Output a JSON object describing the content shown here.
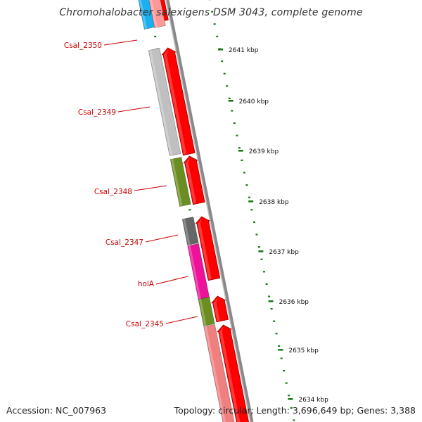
{
  "title": "Chromohalobacter salexigens DSM 3043, complete genome",
  "footer": {
    "accession": "Accession: NC_007963",
    "summary": "Topology: circular; Length: 3,696,649 bp; Genes: 3,388"
  },
  "colors": {
    "forward_strand": "#ff0000",
    "backbone": "#888888",
    "tick": "#1a7a1a",
    "label": "#cc0000"
  },
  "genes": [
    {
      "name": "",
      "color": "#1ab0f0"
    },
    {
      "name": "Csal_2350",
      "color": "#ff9999"
    },
    {
      "name": "Csal_2349",
      "color": "#c0c0c0"
    },
    {
      "name": "Csal_2348",
      "color": "#6b8e23"
    },
    {
      "name": "Csal_2347",
      "color": "#666666"
    },
    {
      "name": "holA",
      "color": "#ee1199"
    },
    {
      "name": "Csal_2345",
      "color": "#6b8e23"
    },
    {
      "name": "",
      "color": "#f08080"
    }
  ],
  "scale_labels": [
    "2641 kbp",
    "2640 kbp",
    "2639 kbp",
    "2638 kbp",
    "2637 kbp",
    "2636 kbp",
    "2635 kbp",
    "2634 kbp"
  ]
}
